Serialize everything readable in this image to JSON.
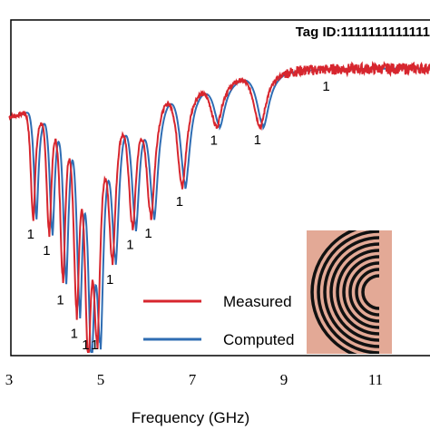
{
  "chart_data": {
    "type": "line",
    "title": "Tag ID:1111111111111",
    "xlabel": "Frequency (GHz)",
    "ylabel": "",
    "xlim": [
      3,
      13.2
    ],
    "ylim": [
      -1,
      1
    ],
    "xticks": [
      3,
      5,
      7,
      9,
      11
    ],
    "grid": false,
    "legend_position": "bottom-center",
    "series": [
      {
        "name": "Measured",
        "color": "#d7262e"
      },
      {
        "name": "Computed",
        "color": "#2f6db3"
      }
    ],
    "resonances": [
      {
        "f": 3.55,
        "depth": 0.45,
        "label": "1"
      },
      {
        "f": 3.9,
        "depth": 0.52,
        "label": "1"
      },
      {
        "f": 4.2,
        "depth": 0.72,
        "label": "1"
      },
      {
        "f": 4.5,
        "depth": 0.85,
        "label": "1"
      },
      {
        "f": 4.75,
        "depth": 0.98,
        "label": "1"
      },
      {
        "f": 4.95,
        "depth": 0.86,
        "label": "1"
      },
      {
        "f": 5.28,
        "depth": 0.6,
        "label": "1"
      },
      {
        "f": 5.72,
        "depth": 0.52,
        "label": "1"
      },
      {
        "f": 6.12,
        "depth": 0.48,
        "label": "1"
      },
      {
        "f": 6.8,
        "depth": 0.4,
        "label": "1"
      },
      {
        "f": 7.55,
        "depth": 0.18,
        "label": "1"
      },
      {
        "f": 8.5,
        "depth": 0.22,
        "label": "1"
      },
      {
        "f": 10.0,
        "depth": 0.0,
        "label": "1"
      }
    ],
    "legend_entries": [
      "Measured",
      "Computed"
    ]
  },
  "inset": {
    "description_name": "tag-image-inset"
  }
}
